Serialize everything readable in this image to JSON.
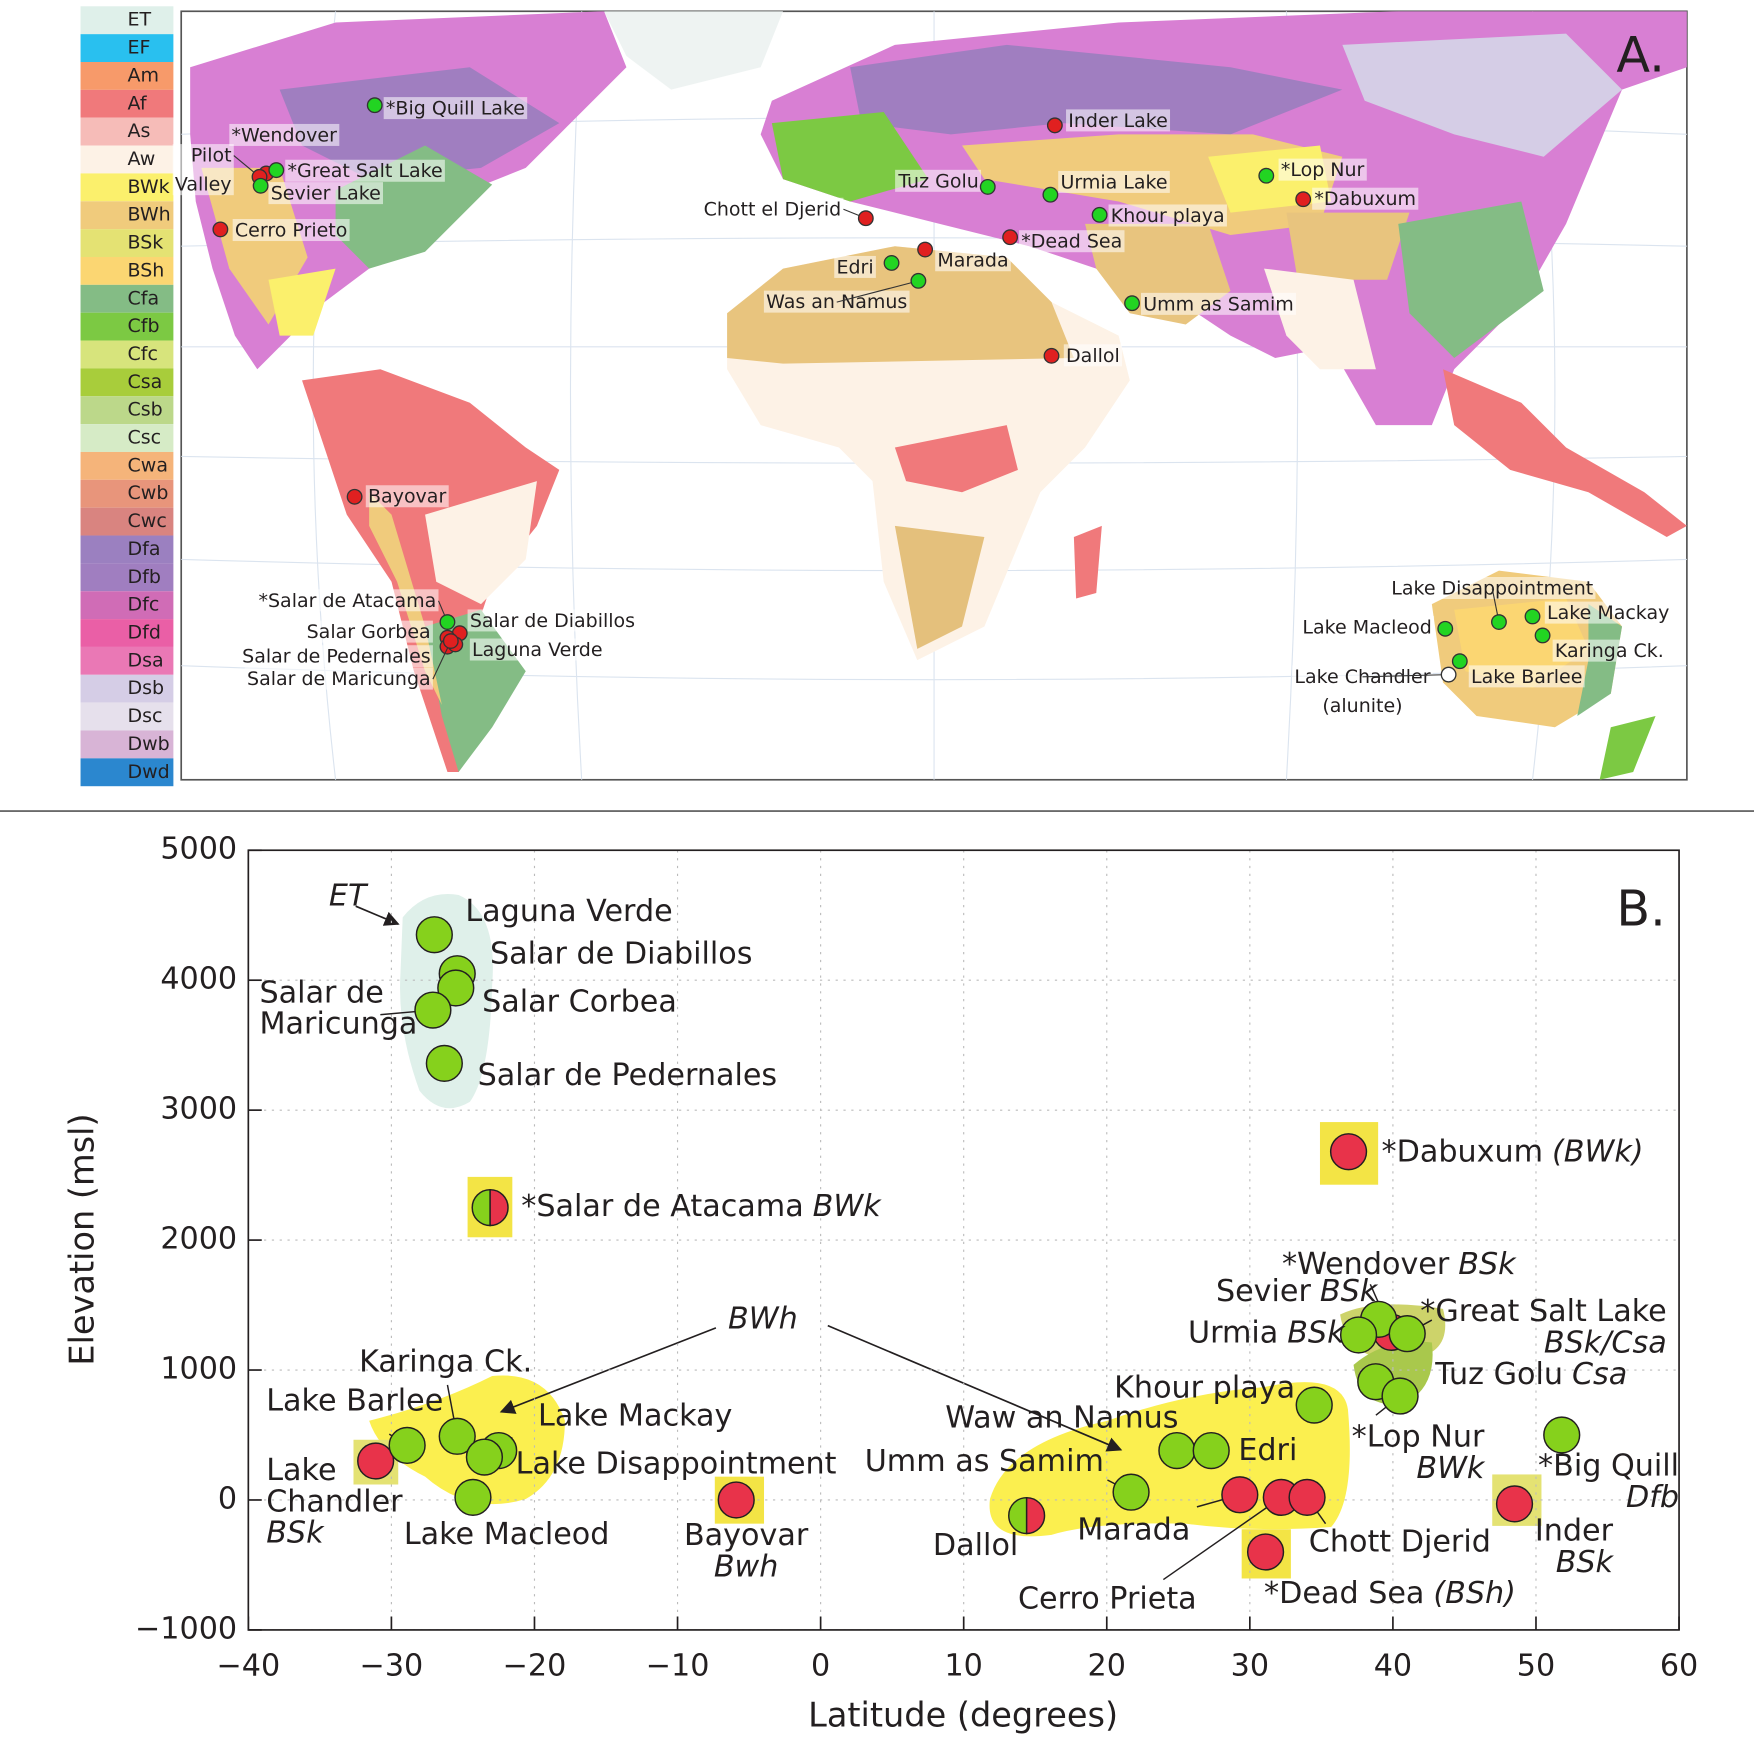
{
  "chart_data": [
    {
      "type": "map",
      "panel_label": "A.",
      "legend": {
        "labels": [
          "ET",
          "EF",
          "Am",
          "Af",
          "As",
          "Aw",
          "BWk",
          "BWh",
          "BSk",
          "BSh",
          "Cfa",
          "Cfb",
          "Cfc",
          "Csa",
          "Csb",
          "Csc",
          "Cwa",
          "Cwb",
          "Cwc",
          "Dfa",
          "Dfb",
          "Dfc",
          "Dfd",
          "Dsa",
          "Dsb",
          "Dsc",
          "Dwb",
          "Dwd"
        ],
        "colors": [
          "#dff0ea",
          "#29c0ef",
          "#f79a6a",
          "#f0797b",
          "#f6bcb8",
          "#fdf2e6",
          "#fbf06c",
          "#f0cb7c",
          "#e4e273",
          "#fbd672",
          "#84bc85",
          "#7cc943",
          "#d7e47c",
          "#a8cd3b",
          "#bcd88a",
          "#d6ebc6",
          "#f5b47a",
          "#e8957b",
          "#d98480",
          "#9b80c0",
          "#a07ec0",
          "#d06cb6",
          "#ea5fa6",
          "#ea78b5",
          "#d5cde6",
          "#e6e0ec",
          "#d8b4d6",
          "#2b87cf"
        ]
      },
      "sites": [
        {
          "label": [
            "*Big Quill Lake"
          ],
          "color": "#22d422"
        },
        {
          "label": [
            "*Wendover"
          ],
          "color": "#e02020"
        },
        {
          "label": [
            "Pilot",
            "Valley"
          ],
          "color": "#e02020"
        },
        {
          "label": [
            "*Great Salt Lake"
          ],
          "color": "#22d422"
        },
        {
          "label": [
            "Sevier Lake"
          ],
          "color": "#22d422"
        },
        {
          "label": [
            "Cerro Prieto"
          ],
          "color": "#e02020"
        },
        {
          "label": [
            "Inder Lake"
          ],
          "color": "#e02020"
        },
        {
          "label": [
            "*Lop Nur"
          ],
          "color": "#22d422"
        },
        {
          "label": [
            "*Dabuxum"
          ],
          "color": "#e02020"
        },
        {
          "label": [
            "Tuz Golu"
          ],
          "color": "#22d422"
        },
        {
          "label": [
            "Urmia Lake"
          ],
          "color": "#22d422"
        },
        {
          "label": [
            "Khour playa"
          ],
          "color": "#22d422"
        },
        {
          "label": [
            "Chott el Djerid"
          ],
          "color": "#e02020"
        },
        {
          "label": [
            "*Dead Sea"
          ],
          "color": "#e02020"
        },
        {
          "label": [
            "Marada"
          ],
          "color": "#e02020"
        },
        {
          "label": [
            "Edri"
          ],
          "color": "#22d422"
        },
        {
          "label": [
            "Was an Namus"
          ],
          "color": "#22d422"
        },
        {
          "label": [
            "Umm as Samim"
          ],
          "color": "#22d422"
        },
        {
          "label": [
            "Dallol"
          ],
          "color": "#e02020"
        },
        {
          "label": [
            "Bayovar"
          ],
          "color": "#e02020"
        },
        {
          "label": [
            "*Salar de Atacama"
          ],
          "color": "#22d422"
        },
        {
          "label": [
            "Salar de Diabillos"
          ],
          "color": "#e02020"
        },
        {
          "label": [
            "Salar Gorbea"
          ],
          "color": "#e02020"
        },
        {
          "label": [
            "Salar de Pedernales"
          ],
          "color": "#e02020"
        },
        {
          "label": [
            "Laguna Verde"
          ],
          "color": "#e02020"
        },
        {
          "label": [
            "Salar de Maricunga"
          ],
          "color": "#e02020"
        },
        {
          "label": [
            "Lake Disappointment"
          ],
          "color": "#22d422"
        },
        {
          "label": [
            "Lake Macleod"
          ],
          "color": "#22d422"
        },
        {
          "label": [
            "Lake Mackay"
          ],
          "color": "#22d422"
        },
        {
          "label": [
            "Karinga Ck."
          ],
          "color": "#22d422"
        },
        {
          "label": [
            "Lake Barlee"
          ],
          "color": "#22d422"
        },
        {
          "label": [
            "Lake Chandler",
            "(alunite)"
          ],
          "color": "#ffffff"
        }
      ]
    },
    {
      "type": "scatter",
      "panel_label": "B.",
      "xlabel": "Latitude (degrees)",
      "ylabel": "Elevation (msl)",
      "xlim": [
        -40,
        60
      ],
      "ylim": [
        -1000,
        5000
      ],
      "xticks": [
        {
          "value": -40,
          "label": "−40"
        },
        {
          "value": -30,
          "label": "−30"
        },
        {
          "value": -20,
          "label": "−20"
        },
        {
          "value": -10,
          "label": "−10"
        },
        0,
        10,
        20,
        30,
        40,
        50,
        60
      ],
      "yticks": [
        {
          "value": -1000,
          "label": "−1000"
        },
        0,
        1000,
        2000,
        3000,
        4000,
        5000
      ],
      "grid": true,
      "annotations": [
        "ET",
        "BWh"
      ],
      "points": [
        {
          "label": [
            "Laguna Verde"
          ],
          "lat": -27.0,
          "elevation": 4350,
          "fill": [
            "#86d11c"
          ]
        },
        {
          "label": [
            "Salar de Diabillos"
          ],
          "lat": -25.4,
          "elevation": 4050,
          "fill": [
            "#86d11c"
          ]
        },
        {
          "label": [
            "Salar Corbea"
          ],
          "lat": -25.5,
          "elevation": 3940,
          "fill": [
            "#86d11c"
          ]
        },
        {
          "label": [
            "Salar de",
            "Maricunga"
          ],
          "lat": -27.1,
          "elevation": 3770,
          "fill": [
            "#86d11c"
          ]
        },
        {
          "label": [
            "Salar de Pedernales"
          ],
          "lat": -26.3,
          "elevation": 3360,
          "fill": [
            "#86d11c"
          ]
        },
        {
          "label": [
            "*Salar de Atacama"
          ],
          "climate": "BWk",
          "lat": -23.1,
          "elevation": 2250,
          "fill": [
            "#86d11c",
            "#e8334a"
          ]
        },
        {
          "label": [
            "*Dabuxum"
          ],
          "climate": "(BWk)",
          "lat": 36.9,
          "elevation": 2680,
          "fill": [
            "#e8334a"
          ]
        },
        {
          "label": [
            "*Wendover"
          ],
          "climate": "BSk",
          "lat": 39.9,
          "elevation": 1290,
          "fill": [
            "#e8334a"
          ]
        },
        {
          "label": [
            "Sevier"
          ],
          "climate": "BSk",
          "lat": 39.0,
          "elevation": 1390,
          "fill": [
            "#86d11c"
          ]
        },
        {
          "label": [
            "Urmia"
          ],
          "climate": "BSk",
          "lat": 37.6,
          "elevation": 1270,
          "fill": [
            "#86d11c"
          ]
        },
        {
          "label": [
            "*Great Salt Lake"
          ],
          "climate": "BSk/Csa",
          "lat": 41.0,
          "elevation": 1280,
          "fill": [
            "#86d11c"
          ]
        },
        {
          "label": [
            "Tuz Golu"
          ],
          "climate": "Csa",
          "lat": 38.8,
          "elevation": 910,
          "fill": [
            "#86d11c"
          ]
        },
        {
          "label": [
            "*Lop Nur"
          ],
          "climate": "BWk",
          "lat": 40.5,
          "elevation": 800,
          "fill": [
            "#86d11c"
          ]
        },
        {
          "label": [
            "*Big Quill"
          ],
          "climate": "Dfb",
          "lat": 51.8,
          "elevation": 500,
          "fill": [
            "#86d11c"
          ]
        },
        {
          "label": [
            "Inder"
          ],
          "climate": "BSk",
          "lat": 48.5,
          "elevation": -30,
          "fill": [
            "#e8334a"
          ]
        },
        {
          "label": [
            "Khour playa"
          ],
          "lat": 34.5,
          "elevation": 730,
          "fill": [
            "#86d11c"
          ]
        },
        {
          "label": [
            "Waw an Namus"
          ],
          "lat": 24.9,
          "elevation": 380,
          "fill": [
            "#86d11c"
          ]
        },
        {
          "label": [
            "Edri"
          ],
          "lat": 27.3,
          "elevation": 380,
          "fill": [
            "#86d11c"
          ]
        },
        {
          "label": [
            "Umm as Samim"
          ],
          "lat": 21.7,
          "elevation": 60,
          "fill": [
            "#86d11c"
          ]
        },
        {
          "label": [
            "Dallol"
          ],
          "lat": 14.4,
          "elevation": -120,
          "fill": [
            "#86d11c",
            "#e8334a"
          ]
        },
        {
          "label": [
            "Marada"
          ],
          "lat": 29.3,
          "elevation": 40,
          "fill": [
            "#e8334a"
          ]
        },
        {
          "label": [
            "Cerro Prieta"
          ],
          "lat": 32.2,
          "elevation": 20,
          "fill": [
            "#e8334a"
          ]
        },
        {
          "label": [
            "Chott Djerid"
          ],
          "lat": 34.0,
          "elevation": 20,
          "fill": [
            "#e8334a"
          ]
        },
        {
          "label": [
            "*Dead Sea"
          ],
          "climate": "(BSh)",
          "lat": 31.1,
          "elevation": -400,
          "fill": [
            "#e8334a"
          ]
        },
        {
          "label": [
            "Bayovar"
          ],
          "climate": "Bwh",
          "lat": -5.9,
          "elevation": 0,
          "fill": [
            "#e8334a"
          ]
        },
        {
          "label": [
            "Lake",
            "Chandler"
          ],
          "climate": "BSk",
          "lat": -31.1,
          "elevation": 300,
          "fill": [
            "#e8334a"
          ]
        },
        {
          "label": [
            "Lake Barlee"
          ],
          "lat": -28.9,
          "elevation": 420,
          "fill": [
            "#86d11c"
          ]
        },
        {
          "label": [
            "Karinga Ck."
          ],
          "lat": -25.4,
          "elevation": 490,
          "fill": [
            "#86d11c"
          ]
        },
        {
          "label": [
            "Lake Mackay"
          ],
          "lat": -22.5,
          "elevation": 380,
          "fill": [
            "#86d11c"
          ]
        },
        {
          "label": [
            "Lake Disappointment"
          ],
          "lat": -23.5,
          "elevation": 330,
          "fill": [
            "#86d11c"
          ]
        },
        {
          "label": [
            "Lake Macleod"
          ],
          "lat": -24.3,
          "elevation": 20,
          "fill": [
            "#86d11c"
          ]
        }
      ]
    }
  ]
}
